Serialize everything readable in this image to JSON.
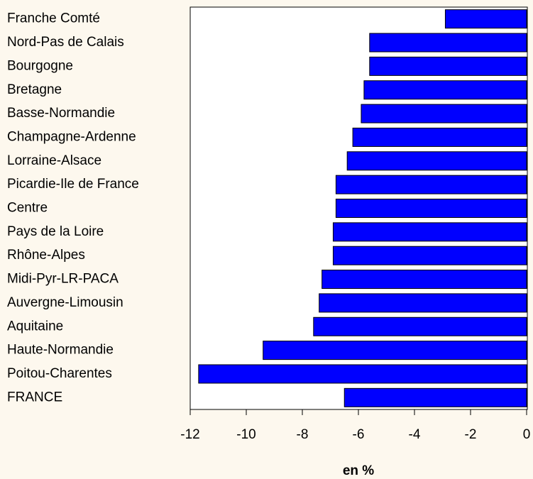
{
  "chart_data": {
    "type": "bar",
    "orientation": "horizontal",
    "xlabel": "en %",
    "categories": [
      "Franche Comté",
      "Nord-Pas de Calais",
      "Bourgogne",
      "Bretagne",
      "Basse-Normandie",
      "Champagne-Ardenne",
      "Lorraine-Alsace",
      "Picardie-Ile de France",
      "Centre",
      "Pays de la Loire",
      "Rhône-Alpes",
      "Midi-Pyr-LR-PACA",
      "Auvergne-Limousin",
      "Aquitaine",
      "Haute-Normandie",
      "Poitou-Charentes",
      "FRANCE"
    ],
    "values": [
      -2.9,
      -5.6,
      -5.6,
      -5.8,
      -5.9,
      -6.2,
      -6.4,
      -6.8,
      -6.8,
      -6.9,
      -6.9,
      -7.3,
      -7.4,
      -7.6,
      -9.4,
      -11.7,
      -6.5
    ],
    "color": "#0000ff",
    "xlim": [
      -12,
      0
    ],
    "xticks": [
      -12,
      -10,
      -8,
      -6,
      -4,
      -2,
      0
    ],
    "grid": false
  }
}
